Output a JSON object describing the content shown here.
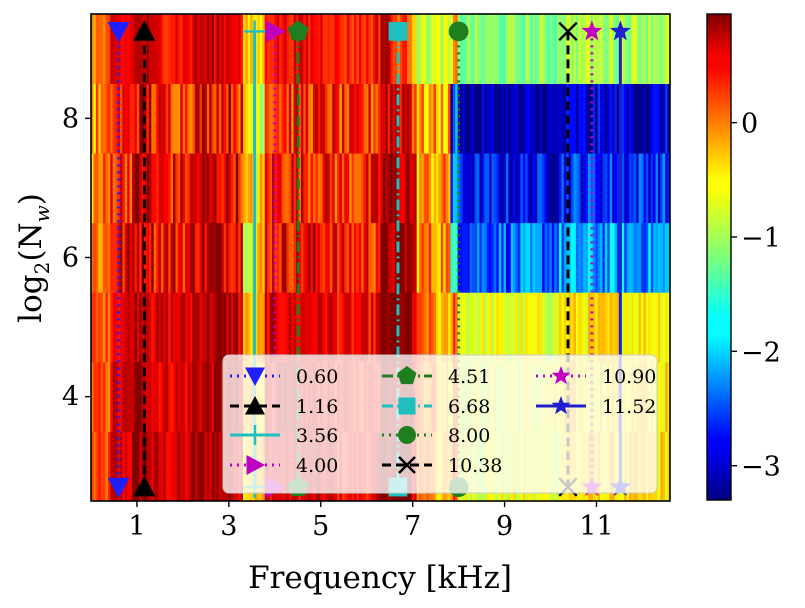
{
  "chart_data": {
    "type": "heatmap",
    "title": "",
    "xlabel": "Frequency [kHz]",
    "ylabel_parts": {
      "base": "log",
      "sub": "2",
      "arg": "(N",
      "arg_sub": "w",
      "close": ")"
    },
    "xlim": [
      0,
      12.6
    ],
    "ylim": [
      2.5,
      9.5
    ],
    "xticks": [
      1,
      3,
      5,
      7,
      9,
      11
    ],
    "xtick_labels": [
      "1",
      "3",
      "5",
      "7",
      "9",
      "11"
    ],
    "yticks": [
      4,
      6,
      8
    ],
    "ytick_labels": [
      "4",
      "6",
      "8"
    ],
    "colorbar": {
      "colormap": "jet",
      "range": [
        -3.3,
        0.95
      ],
      "ticks": [
        -3,
        -2,
        -1,
        0
      ],
      "tick_labels": [
        "−3",
        "−2",
        "−1",
        "0"
      ]
    },
    "heatmap_rows": [
      {
        "log2_Nw": 3,
        "level": 0.55
      },
      {
        "log2_Nw": 4,
        "level": 0.5
      },
      {
        "log2_Nw": 5,
        "level": 0.5
      },
      {
        "log2_Nw": 6,
        "level": 0.3
      },
      {
        "log2_Nw": 7,
        "level": 0.05
      },
      {
        "log2_Nw": 8,
        "level": -0.15
      },
      {
        "log2_Nw": 9,
        "level": 0.2
      }
    ],
    "series": [
      {
        "name": "0.60",
        "x": 0.6,
        "color": "#1f1fff",
        "dash": "dotted",
        "marker": "triangle-down"
      },
      {
        "name": "1.16",
        "x": 1.16,
        "color": "#000000",
        "dash": "dashed",
        "marker": "triangle-up"
      },
      {
        "name": "3.56",
        "x": 3.56,
        "color": "#1fbfbf",
        "dash": "solid",
        "marker": "plus"
      },
      {
        "name": "4.00",
        "x": 4.0,
        "color": "#c000c0",
        "dash": "dotted",
        "marker": "triangle-right"
      },
      {
        "name": "4.51",
        "x": 4.51,
        "color": "#1f7f1f",
        "dash": "dashdot",
        "marker": "pentagon"
      },
      {
        "name": "6.68",
        "x": 6.68,
        "color": "#1fbfbf",
        "dash": "dashdot",
        "marker": "square"
      },
      {
        "name": "8.00",
        "x": 8.0,
        "color": "#1f7f1f",
        "dash": "dotted",
        "marker": "circle"
      },
      {
        "name": "10.38",
        "x": 10.38,
        "color": "#000000",
        "dash": "dashed",
        "marker": "x"
      },
      {
        "name": "10.90",
        "x": 10.9,
        "color": "#c000c0",
        "dash": "dotted",
        "marker": "star"
      },
      {
        "name": "11.52",
        "x": 11.52,
        "color": "#1f1fcf",
        "dash": "solid",
        "marker": "star"
      }
    ],
    "legend_position": "lower-right"
  }
}
